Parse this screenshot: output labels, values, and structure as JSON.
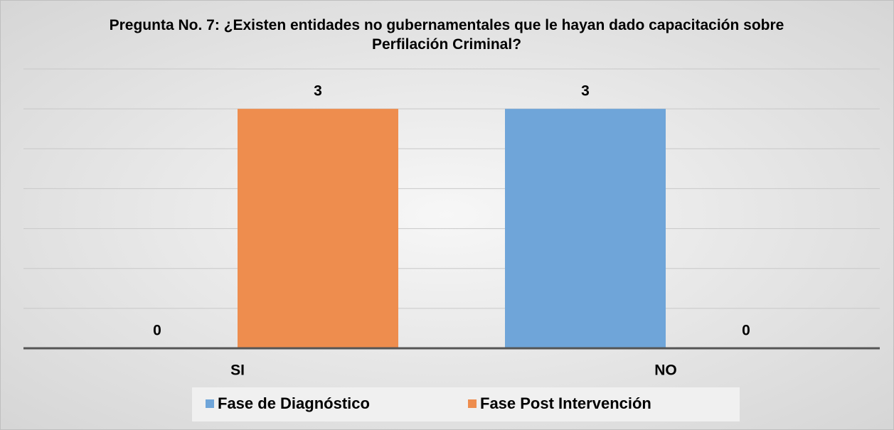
{
  "chart_data": {
    "type": "bar",
    "title": "Pregunta No. 7: ¿Existen entidades no gubernamentales que le hayan dado capacitación sobre Perfilación Criminal?",
    "categories": [
      "SI",
      "NO"
    ],
    "series": [
      {
        "name": "Fase de Diagnóstico",
        "color": "#6fa5d9",
        "values": [
          0,
          3
        ]
      },
      {
        "name": "Fase Post Intervención",
        "color": "#ee8d4e",
        "values": [
          3,
          0
        ]
      }
    ],
    "ylim": [
      0,
      3.5
    ],
    "yticks": [
      0,
      0.5,
      1,
      1.5,
      2,
      2.5,
      3,
      3.5
    ],
    "grid": true,
    "legend": "bottom"
  }
}
